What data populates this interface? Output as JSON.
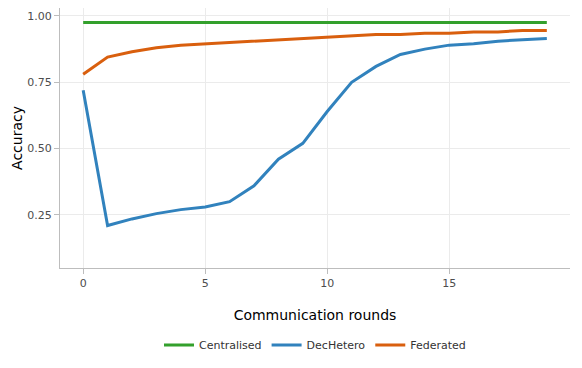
{
  "chart_data": {
    "type": "line",
    "x_label": "Communication rounds",
    "y_label": "Accuracy",
    "x": [
      0,
      1,
      2,
      3,
      4,
      5,
      6,
      7,
      8,
      9,
      10,
      11,
      12,
      13,
      14,
      15,
      16,
      17,
      18,
      19
    ],
    "series": [
      {
        "name": "Centralised",
        "color": "#33a02c",
        "values": [
          0.975,
          0.975,
          0.975,
          0.975,
          0.975,
          0.975,
          0.975,
          0.975,
          0.975,
          0.975,
          0.975,
          0.975,
          0.975,
          0.975,
          0.975,
          0.975,
          0.975,
          0.975,
          0.975,
          0.975
        ]
      },
      {
        "name": "DecHetero",
        "color": "#3182bd",
        "values": [
          0.72,
          0.21,
          0.235,
          0.255,
          0.27,
          0.28,
          0.3,
          0.36,
          0.46,
          0.52,
          0.64,
          0.75,
          0.81,
          0.855,
          0.875,
          0.89,
          0.895,
          0.905,
          0.91,
          0.915
        ]
      },
      {
        "name": "Federated",
        "color": "#d95f0e",
        "values": [
          0.78,
          0.845,
          0.865,
          0.88,
          0.89,
          0.895,
          0.9,
          0.905,
          0.91,
          0.915,
          0.92,
          0.925,
          0.93,
          0.93,
          0.935,
          0.935,
          0.94,
          0.94,
          0.945,
          0.945
        ]
      }
    ],
    "xlim": [
      -0.95,
      19.95
    ],
    "xticks": [
      0,
      5,
      10,
      15
    ],
    "ylim": [
      0.05,
      1.03
    ],
    "yticks": [
      {
        "value": 0.25,
        "label": "0.25"
      },
      {
        "value": 0.5,
        "label": "0.50"
      },
      {
        "value": 0.75,
        "label": "0.75"
      },
      {
        "value": 1,
        "label": "1.00"
      }
    ],
    "grid": true,
    "legend": "bottom"
  }
}
